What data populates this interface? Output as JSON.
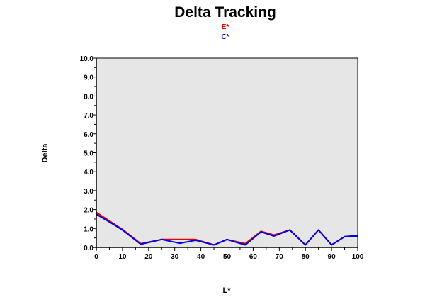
{
  "chart_data": {
    "type": "line",
    "title": "Delta Tracking",
    "xlabel": "L*",
    "ylabel": "Delta",
    "xlim": [
      0,
      100
    ],
    "ylim": [
      0,
      10
    ],
    "xticks": [
      "0",
      "10",
      "20",
      "30",
      "40",
      "50",
      "60",
      "70",
      "80",
      "90",
      "100"
    ],
    "yticks": [
      "0.0",
      "1.0",
      "2.0",
      "3.0",
      "4.0",
      "5.0",
      "6.0",
      "7.0",
      "8.0",
      "9.0",
      "10.0"
    ],
    "grid": false,
    "legend_position": "top-center",
    "plot_background": "#e6e6e6",
    "series": [
      {
        "name": "E*",
        "color": "#e00000",
        "x": [
          0,
          5,
          10,
          17,
          25,
          32,
          38,
          45,
          50,
          57,
          63,
          68,
          74,
          80,
          85,
          90,
          95,
          98,
          100
        ],
        "y": [
          1.85,
          1.4,
          0.95,
          0.2,
          0.42,
          0.42,
          0.42,
          0.13,
          0.42,
          0.2,
          0.85,
          0.65,
          0.92,
          0.13,
          0.92,
          0.13,
          0.57,
          0.6,
          0.6
        ]
      },
      {
        "name": "C*",
        "color": "#0000e0",
        "x": [
          0,
          5,
          10,
          17,
          25,
          32,
          38,
          45,
          50,
          57,
          63,
          68,
          74,
          80,
          85,
          90,
          95,
          98,
          100
        ],
        "y": [
          1.75,
          1.35,
          0.92,
          0.17,
          0.42,
          0.22,
          0.38,
          0.13,
          0.42,
          0.13,
          0.82,
          0.6,
          0.92,
          0.13,
          0.92,
          0.13,
          0.57,
          0.6,
          0.6
        ]
      }
    ]
  }
}
